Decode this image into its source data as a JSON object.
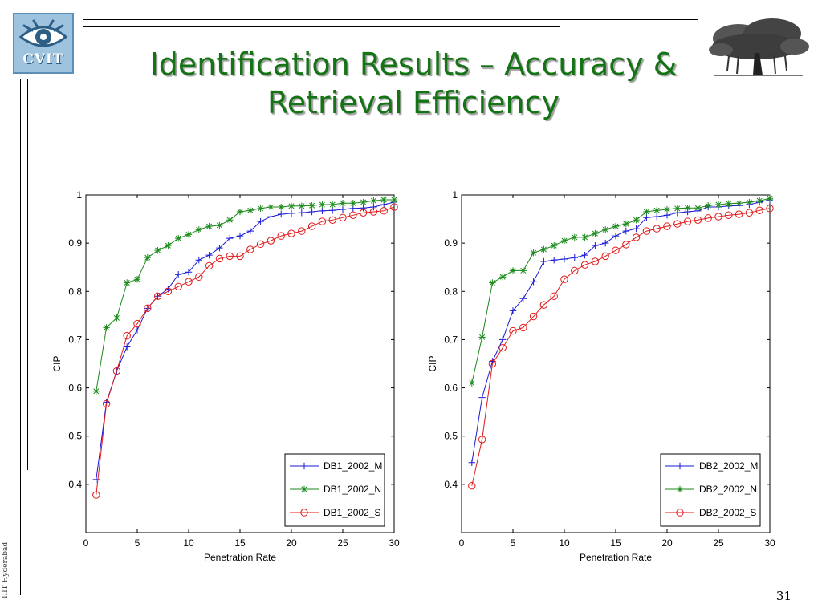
{
  "slide": {
    "title_line1": "Identification Results – Accuracy &",
    "title_line2": "Retrieval Efficiency",
    "logo_text": "CVIT",
    "side_text": "IIIT Hyderabad",
    "page_number": "31",
    "colors": {
      "title": "#147314",
      "series_m": "#1a1ad6",
      "series_n": "#1a8a1a",
      "series_s": "#e01a1a"
    }
  },
  "chart_data": [
    {
      "type": "line",
      "xlabel": "Penetration Rate",
      "ylabel": "CIP",
      "xlim": [
        0,
        30
      ],
      "ylim": [
        0.3,
        1.0
      ],
      "xticks": [
        "0",
        "5",
        "10",
        "15",
        "20",
        "25",
        "30"
      ],
      "yticks": [
        "0.4",
        "0.5",
        "0.6",
        "0.7",
        "0.8",
        "0.9",
        "1"
      ],
      "legend_position": "bottom-right",
      "x": [
        1,
        2,
        3,
        4,
        5,
        6,
        7,
        8,
        9,
        10,
        11,
        12,
        13,
        14,
        15,
        16,
        17,
        18,
        19,
        20,
        21,
        22,
        23,
        24,
        25,
        26,
        27,
        28,
        29,
        30
      ],
      "series": [
        {
          "name": "DB1_2002_M",
          "marker": "plus",
          "color": "#1a1ad6",
          "values": [
            0.41,
            0.57,
            0.635,
            0.685,
            0.72,
            0.765,
            0.79,
            0.805,
            0.835,
            0.84,
            0.865,
            0.875,
            0.89,
            0.91,
            0.915,
            0.925,
            0.945,
            0.955,
            0.96,
            0.962,
            0.963,
            0.965,
            0.967,
            0.968,
            0.97,
            0.972,
            0.973,
            0.975,
            0.98,
            0.985
          ]
        },
        {
          "name": "DB1_2002_N",
          "marker": "star",
          "color": "#1a8a1a",
          "values": [
            0.593,
            0.725,
            0.745,
            0.818,
            0.825,
            0.87,
            0.885,
            0.895,
            0.91,
            0.918,
            0.928,
            0.935,
            0.937,
            0.948,
            0.965,
            0.968,
            0.972,
            0.975,
            0.975,
            0.977,
            0.977,
            0.978,
            0.98,
            0.98,
            0.983,
            0.983,
            0.985,
            0.988,
            0.99,
            0.99
          ]
        },
        {
          "name": "DB1_2002_S",
          "marker": "circle",
          "color": "#e01a1a",
          "values": [
            0.378,
            0.567,
            0.635,
            0.708,
            0.733,
            0.765,
            0.79,
            0.8,
            0.81,
            0.82,
            0.83,
            0.853,
            0.868,
            0.873,
            0.873,
            0.887,
            0.898,
            0.905,
            0.915,
            0.92,
            0.925,
            0.935,
            0.945,
            0.948,
            0.953,
            0.958,
            0.963,
            0.965,
            0.967,
            0.975
          ]
        }
      ]
    },
    {
      "type": "line",
      "xlabel": "Penetration Rate",
      "ylabel": "CIP",
      "xlim": [
        0,
        30
      ],
      "ylim": [
        0.3,
        1.0
      ],
      "xticks": [
        "0",
        "5",
        "10",
        "15",
        "20",
        "25",
        "30"
      ],
      "yticks": [
        "0.4",
        "0.5",
        "0.6",
        "0.7",
        "0.8",
        "0.9",
        "1"
      ],
      "legend_position": "bottom-right",
      "x": [
        1,
        2,
        3,
        4,
        5,
        6,
        7,
        8,
        9,
        10,
        11,
        12,
        13,
        14,
        15,
        16,
        17,
        18,
        19,
        20,
        21,
        22,
        23,
        24,
        25,
        26,
        27,
        28,
        29,
        30
      ],
      "series": [
        {
          "name": "DB2_2002_M",
          "marker": "plus",
          "color": "#1a1ad6",
          "values": [
            0.445,
            0.58,
            0.655,
            0.7,
            0.76,
            0.785,
            0.82,
            0.862,
            0.865,
            0.867,
            0.87,
            0.875,
            0.895,
            0.9,
            0.915,
            0.925,
            0.93,
            0.953,
            0.955,
            0.958,
            0.963,
            0.965,
            0.967,
            0.975,
            0.975,
            0.977,
            0.978,
            0.98,
            0.985,
            0.99
          ]
        },
        {
          "name": "DB2_2002_N",
          "marker": "star",
          "color": "#1a8a1a",
          "values": [
            0.61,
            0.705,
            0.818,
            0.83,
            0.843,
            0.843,
            0.88,
            0.887,
            0.895,
            0.905,
            0.912,
            0.912,
            0.92,
            0.928,
            0.935,
            0.94,
            0.948,
            0.965,
            0.968,
            0.97,
            0.972,
            0.973,
            0.973,
            0.978,
            0.98,
            0.982,
            0.983,
            0.985,
            0.988,
            0.993
          ]
        },
        {
          "name": "DB2_2002_S",
          "marker": "circle",
          "color": "#e01a1a",
          "values": [
            0.397,
            0.493,
            0.65,
            0.683,
            0.718,
            0.725,
            0.748,
            0.772,
            0.79,
            0.825,
            0.843,
            0.855,
            0.862,
            0.873,
            0.885,
            0.897,
            0.912,
            0.925,
            0.93,
            0.935,
            0.94,
            0.945,
            0.948,
            0.952,
            0.955,
            0.958,
            0.96,
            0.963,
            0.968,
            0.972
          ]
        }
      ]
    }
  ]
}
